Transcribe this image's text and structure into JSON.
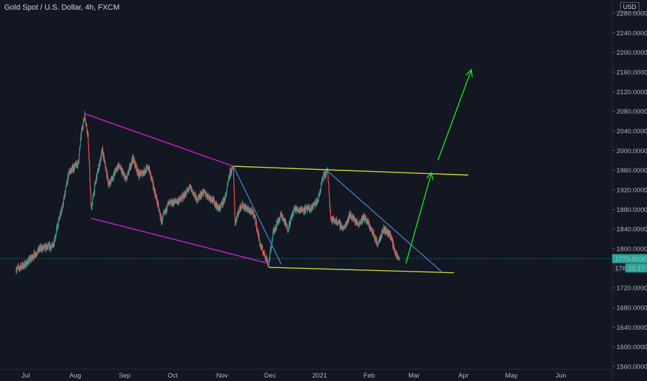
{
  "header": {
    "symbol_title": "Gold Spot / U.S. Dollar, 4h, FXCM",
    "currency": "USD"
  },
  "colors": {
    "background": "#131722",
    "up_candle": "#26a69a",
    "down_candle": "#ef5350",
    "channel_line": "#d41dd4",
    "triangle_line": "#cddc39",
    "trend_line": "#3f7fc8",
    "projection_arrow": "#22e022",
    "price_label": "#26a69a"
  },
  "chart_data": {
    "type": "candlestick",
    "title": "Gold Spot / U.S. Dollar, 4h, FXCM",
    "ylim": [
      1560,
      2320
    ],
    "y_ticks": [
      "2280.0000",
      "2240.0000",
      "2200.0000",
      "2160.0000",
      "2120.0000",
      "2080.0000",
      "2040.0000",
      "2000.0000",
      "1960.0000",
      "1920.0000",
      "1880.0000",
      "1840.0000",
      "1800.0000",
      "1760.0000",
      "1720.0000",
      "1680.0000",
      "1640.0000",
      "1600.0000",
      "1560.0000"
    ],
    "y_tick_values": [
      2280,
      2240,
      2200,
      2160,
      2120,
      2080,
      2040,
      2000,
      1960,
      1920,
      1880,
      1840,
      1800,
      1760,
      1720,
      1680,
      1640,
      1600,
      1560
    ],
    "x_ticks": [
      "Jul",
      "Aug",
      "Sep",
      "Oct",
      "Nov",
      "Dec",
      "2021",
      "Feb",
      "Mar",
      "Apr",
      "May",
      "Jun"
    ],
    "x_tick_dates": [
      "2020-07-01",
      "2020-08-01",
      "2020-09-01",
      "2020-10-01",
      "2020-11-01",
      "2020-12-01",
      "2021-01-01",
      "2021-02-01",
      "2021-03-01",
      "2021-04-01",
      "2021-05-01",
      "2021-06-01"
    ],
    "price_path": [
      [
        "2020-06-25",
        1758
      ],
      [
        "2020-07-01",
        1768
      ],
      [
        "2020-07-10",
        1800
      ],
      [
        "2020-07-18",
        1805
      ],
      [
        "2020-07-22",
        1860
      ],
      [
        "2020-07-25",
        1900
      ],
      [
        "2020-07-28",
        1955
      ],
      [
        "2020-08-03",
        1975
      ],
      [
        "2020-08-05",
        2040
      ],
      [
        "2020-08-07",
        2072
      ],
      [
        "2020-08-09",
        2030
      ],
      [
        "2020-08-11",
        1880
      ],
      [
        "2020-08-14",
        1940
      ],
      [
        "2020-08-18",
        2000
      ],
      [
        "2020-08-22",
        1930
      ],
      [
        "2020-08-28",
        1970
      ],
      [
        "2020-09-02",
        1940
      ],
      [
        "2020-09-06",
        1985
      ],
      [
        "2020-09-10",
        1950
      ],
      [
        "2020-09-16",
        1965
      ],
      [
        "2020-09-21",
        1900
      ],
      [
        "2020-09-24",
        1855
      ],
      [
        "2020-09-28",
        1890
      ],
      [
        "2020-10-06",
        1900
      ],
      [
        "2020-10-12",
        1925
      ],
      [
        "2020-10-16",
        1900
      ],
      [
        "2020-10-20",
        1915
      ],
      [
        "2020-10-26",
        1900
      ],
      [
        "2020-10-30",
        1880
      ],
      [
        "2020-11-03",
        1905
      ],
      [
        "2020-11-06",
        1955
      ],
      [
        "2020-11-08",
        1965
      ],
      [
        "2020-11-09",
        1855
      ],
      [
        "2020-11-13",
        1890
      ],
      [
        "2020-11-17",
        1880
      ],
      [
        "2020-11-21",
        1870
      ],
      [
        "2020-11-25",
        1805
      ],
      [
        "2020-11-28",
        1785
      ],
      [
        "2020-11-30",
        1768
      ],
      [
        "2020-12-03",
        1835
      ],
      [
        "2020-12-08",
        1870
      ],
      [
        "2020-12-12",
        1840
      ],
      [
        "2020-12-16",
        1880
      ],
      [
        "2020-12-21",
        1880
      ],
      [
        "2020-12-26",
        1880
      ],
      [
        "2020-12-31",
        1898
      ],
      [
        "2021-01-03",
        1945
      ],
      [
        "2021-01-06",
        1958
      ],
      [
        "2021-01-08",
        1860
      ],
      [
        "2021-01-12",
        1855
      ],
      [
        "2021-01-16",
        1840
      ],
      [
        "2021-01-20",
        1870
      ],
      [
        "2021-01-25",
        1850
      ],
      [
        "2021-01-29",
        1865
      ],
      [
        "2021-02-03",
        1835
      ],
      [
        "2021-02-06",
        1810
      ],
      [
        "2021-02-10",
        1840
      ],
      [
        "2021-02-14",
        1830
      ],
      [
        "2021-02-18",
        1785
      ],
      [
        "2021-02-20",
        1780
      ]
    ],
    "last_price": "1779.8100",
    "countdown_label": "21:17",
    "hidden_price_fragment": "176",
    "drawings": [
      {
        "kind": "line",
        "color": "#d41dd4",
        "from": [
          "2020-08-07",
          2075
        ],
        "to": [
          "2020-11-08",
          1968
        ]
      },
      {
        "kind": "line",
        "color": "#d41dd4",
        "from": [
          "2020-08-11",
          1862
        ],
        "to": [
          "2020-11-30",
          1770
        ]
      },
      {
        "kind": "line",
        "color": "#cddc39",
        "from": [
          "2020-11-08",
          1968
        ],
        "to": [
          "2021-04-04",
          1950
        ]
      },
      {
        "kind": "line",
        "color": "#cddc39",
        "from": [
          "2020-11-30",
          1762
        ],
        "to": [
          "2021-03-26",
          1751
        ]
      },
      {
        "kind": "line",
        "color": "#3f7fc8",
        "from": [
          "2020-11-08",
          1968
        ],
        "to": [
          "2020-12-08",
          1768
        ]
      },
      {
        "kind": "line",
        "color": "#3f7fc8",
        "from": [
          "2021-01-06",
          1958
        ],
        "to": [
          "2021-03-18",
          1754
        ]
      },
      {
        "kind": "arrow",
        "color": "#22e022",
        "from": [
          "2021-02-24",
          1770
        ],
        "to": [
          "2021-03-12",
          1955
        ]
      },
      {
        "kind": "arrow",
        "color": "#22e022",
        "from": [
          "2021-03-16",
          1980
        ],
        "to": [
          "2021-04-06",
          2165
        ]
      }
    ]
  }
}
